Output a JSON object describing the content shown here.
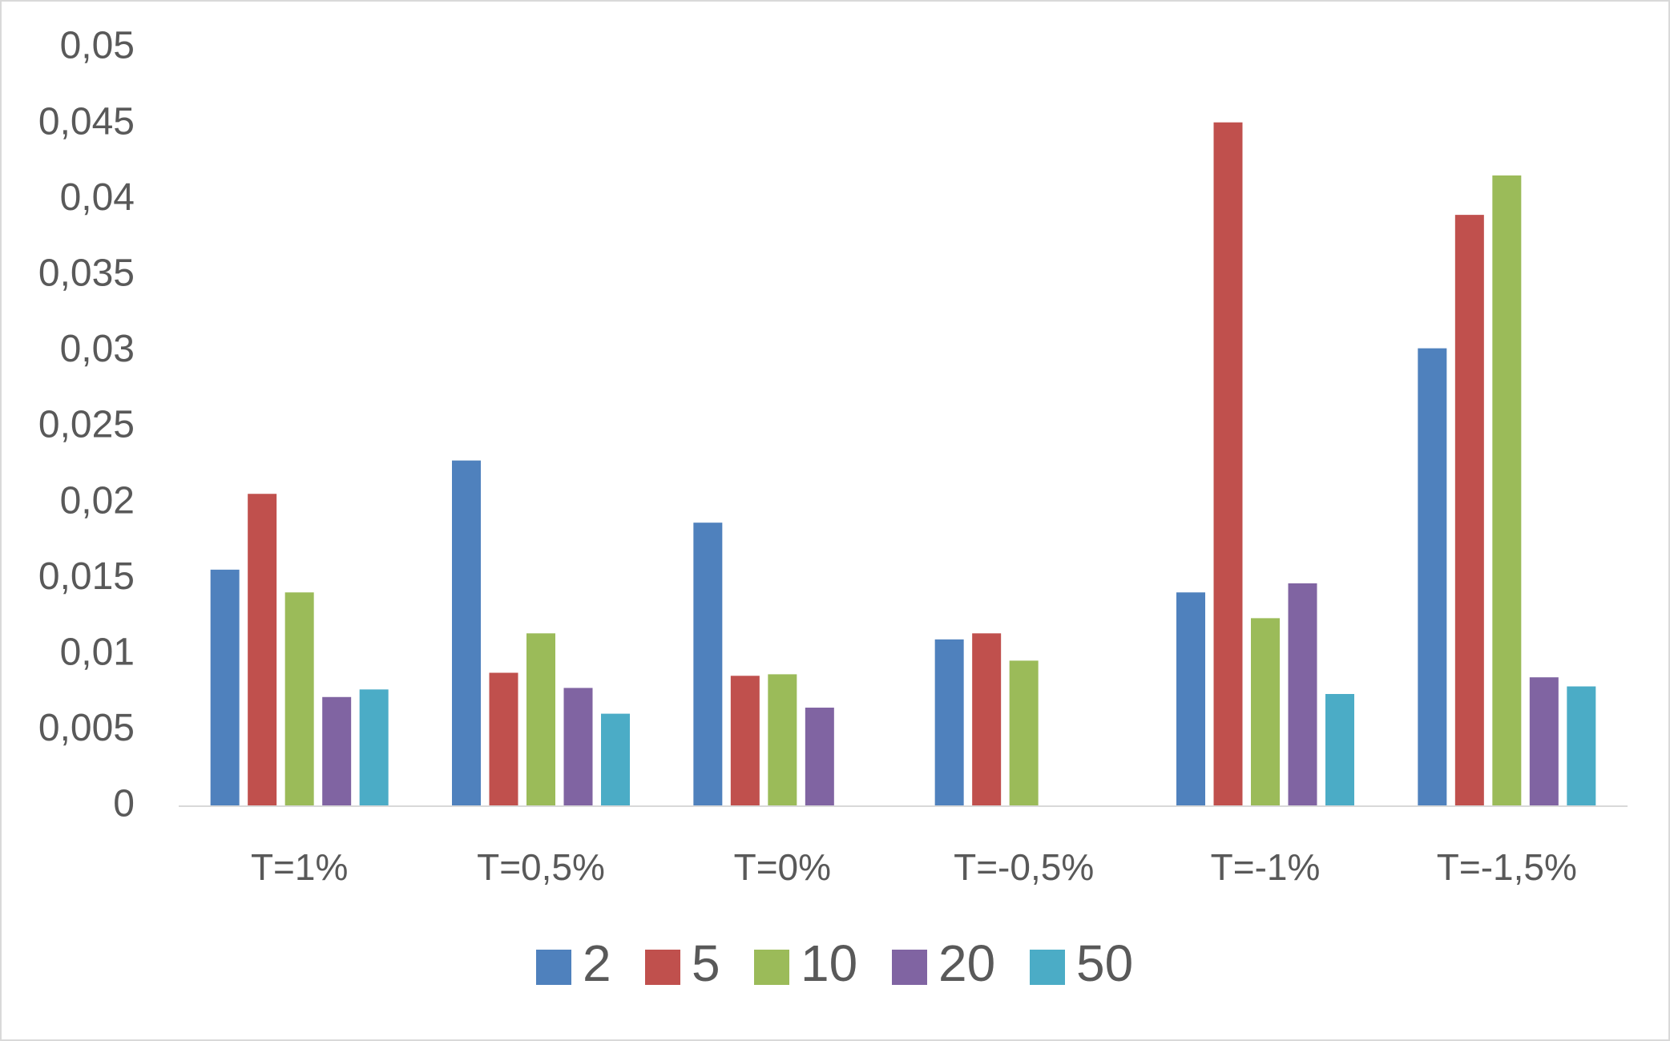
{
  "chart_data": {
    "type": "bar",
    "categories": [
      "T=1%",
      "T=0,5%",
      "T=0%",
      "T=-0,5%",
      "T=-1%",
      "T=-1,5%"
    ],
    "series": [
      {
        "name": "2",
        "color": "#4f81bd",
        "values": [
          0.0156,
          0.0228,
          0.0187,
          0.011,
          0.0141,
          0.0302
        ]
      },
      {
        "name": "5",
        "color": "#c0504d",
        "values": [
          0.0206,
          0.0088,
          0.0086,
          0.0114,
          0.0451,
          0.039
        ]
      },
      {
        "name": "10",
        "color": "#9bbb59",
        "values": [
          0.0141,
          0.0114,
          0.0087,
          0.0096,
          0.0124,
          0.0416
        ]
      },
      {
        "name": "20",
        "color": "#8064a2",
        "values": [
          0.0072,
          0.0078,
          0.0065,
          null,
          0.0147,
          0.0085
        ]
      },
      {
        "name": "50",
        "color": "#4bacc6",
        "values": [
          0.0077,
          0.0061,
          null,
          null,
          0.0074,
          0.0079
        ]
      }
    ],
    "ylim": [
      0,
      0.05
    ],
    "yticks": [
      0,
      {
        "value": 0.005,
        "label": "0,005"
      },
      {
        "value": 0.01,
        "label": "0,01"
      },
      {
        "value": 0.015,
        "label": "0,015"
      },
      {
        "value": 0.02,
        "label": "0,02"
      },
      {
        "value": 0.025,
        "label": "0,025"
      },
      {
        "value": 0.03,
        "label": "0,03"
      },
      {
        "value": 0.035,
        "label": "0,035"
      },
      {
        "value": 0.04,
        "label": "0,04"
      },
      {
        "value": 0.045,
        "label": "0,045"
      },
      {
        "value": 0.05,
        "label": "0,05"
      }
    ],
    "grid": false,
    "legend": "bottom"
  }
}
